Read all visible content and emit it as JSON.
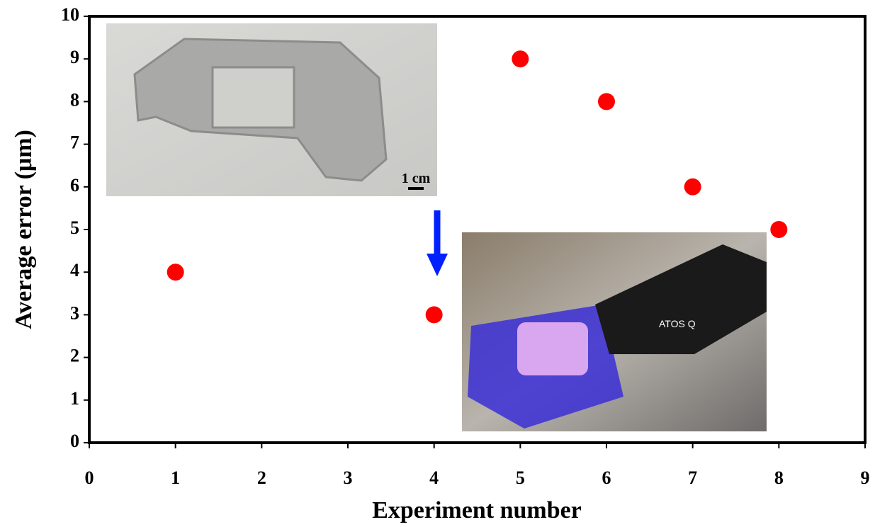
{
  "chart_data": {
    "type": "scatter",
    "x_label": "Experiment number",
    "y_label": "Average error (μm)",
    "x": [
      1,
      4,
      5,
      6,
      7,
      8
    ],
    "values": [
      4,
      3,
      9,
      8,
      6,
      5
    ],
    "color": "#ff0000",
    "xlim": [
      0,
      9
    ],
    "xticks": [
      0,
      1,
      2,
      3,
      4,
      5,
      6,
      7,
      8,
      9
    ],
    "ylim": [
      0,
      10
    ],
    "yticks": [
      0,
      1,
      2,
      3,
      4,
      5,
      6,
      7,
      8,
      9,
      10
    ],
    "annotations": [
      "1 cm",
      "ATOS Q"
    ]
  }
}
